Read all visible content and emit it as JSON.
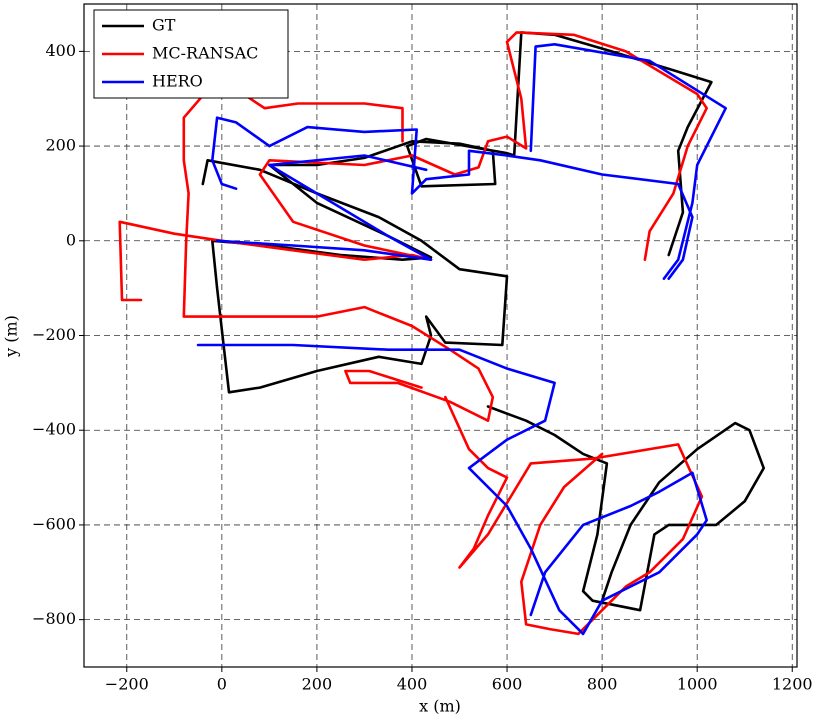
{
  "chart_data": {
    "type": "line",
    "xlabel": "x (m)",
    "ylabel": "y (m)",
    "xlim": [
      -290,
      1210
    ],
    "ylim": [
      -900,
      500
    ],
    "xticks": [
      {
        "value": -200,
        "label": "−200"
      },
      0,
      200,
      400,
      600,
      800,
      1000,
      1200
    ],
    "yticks": [
      {
        "value": -800,
        "label": "−800"
      },
      {
        "value": -600,
        "label": "−600"
      },
      {
        "value": -400,
        "label": "−400"
      },
      {
        "value": -200,
        "label": "−200"
      },
      0,
      200,
      400
    ],
    "grid": true,
    "legend": "upper left",
    "series": [
      {
        "name": "GT",
        "color": "#000000",
        "x": [
          -40,
          -30,
          80,
          200,
          330,
          420,
          500,
          600,
          590,
          470,
          430,
          440,
          420,
          330,
          200,
          80,
          15,
          -10,
          -20,
          100,
          250,
          380,
          440,
          350,
          200,
          100,
          200,
          300,
          400,
          500,
          570,
          575,
          420,
          390,
          430,
          600,
          615,
          630,
          700,
          820,
          950,
          1030,
          980,
          960,
          970,
          940,
          null,
          560,
          640,
          700,
          760,
          810,
          790,
          760,
          780,
          880,
          910,
          940,
          1040,
          1100,
          1140,
          1110,
          1080,
          1000,
          920,
          860,
          820,
          800
        ],
        "values": [
          120,
          170,
          150,
          100,
          50,
          0,
          -60,
          -75,
          -220,
          -215,
          -160,
          -200,
          -260,
          -245,
          -275,
          -310,
          -320,
          -100,
          0,
          -10,
          -30,
          -40,
          -35,
          10,
          80,
          160,
          160,
          175,
          210,
          205,
          190,
          120,
          115,
          200,
          215,
          185,
          180,
          440,
          435,
          400,
          360,
          335,
          240,
          190,
          60,
          -30,
          null,
          -350,
          -380,
          -410,
          -450,
          -470,
          -620,
          -740,
          -760,
          -780,
          -620,
          -600,
          -600,
          -550,
          -480,
          -400,
          -385,
          -440,
          -510,
          -600,
          -700,
          -760
        ]
      },
      {
        "name": "MC-RANSAC",
        "color": "#ff0000",
        "x": [
          -170,
          -210,
          -215,
          -100,
          0,
          150,
          300,
          400,
          440,
          300,
          150,
          80,
          100,
          300,
          400,
          490,
          540,
          560,
          600,
          640,
          630,
          600,
          620,
          740,
          850,
          1000,
          1020,
          980,
          950,
          900,
          890,
          null,
          380,
          380,
          300,
          160,
          90,
          30,
          -20,
          -80,
          -80,
          -70,
          -75,
          -80,
          200,
          300,
          400,
          480,
          540,
          570,
          560,
          480,
          370,
          270,
          260,
          310,
          420,
          null,
          470,
          520,
          560,
          600,
          560,
          530,
          500,
          560,
          650,
          780,
          960,
          1010,
          970,
          900,
          850,
          800,
          750,
          690,
          640,
          630,
          670,
          720,
          800
        ],
        "values": [
          -125,
          -125,
          40,
          15,
          0,
          -20,
          -40,
          -30,
          -40,
          -10,
          40,
          140,
          170,
          160,
          180,
          140,
          155,
          210,
          220,
          195,
          300,
          420,
          440,
          435,
          400,
          310,
          280,
          200,
          100,
          20,
          -40,
          null,
          210,
          280,
          290,
          290,
          280,
          320,
          330,
          260,
          170,
          100,
          0,
          -160,
          -160,
          -140,
          -180,
          -230,
          -270,
          -330,
          -380,
          -340,
          -300,
          -300,
          -275,
          -275,
          -310,
          null,
          -330,
          -440,
          -480,
          -500,
          -580,
          -650,
          -690,
          -620,
          -470,
          -460,
          -430,
          -540,
          -630,
          -700,
          -730,
          -780,
          -830,
          -820,
          -810,
          -720,
          -600,
          -520,
          -450
        ]
      },
      {
        "name": "HERO",
        "color": "#0000ff",
        "x": [
          30,
          0,
          -20,
          -10,
          30,
          100,
          180,
          300,
          410,
          400,
          430,
          520,
          520,
          600,
          670,
          800,
          960,
          990,
          970,
          940,
          null,
          650,
          660,
          700,
          900,
          1060,
          1000,
          990,
          960,
          930,
          null,
          -10,
          150,
          300,
          440,
          350,
          100,
          300,
          430,
          null,
          -50,
          150,
          350,
          500,
          600,
          700,
          680,
          600,
          520,
          600,
          650,
          710,
          760,
          800,
          920,
          1000,
          1020,
          990,
          920,
          860,
          760,
          680,
          650
        ],
        "values": [
          110,
          120,
          170,
          260,
          250,
          200,
          240,
          230,
          235,
          100,
          130,
          140,
          190,
          180,
          170,
          140,
          120,
          50,
          -40,
          -80,
          null,
          190,
          410,
          415,
          380,
          280,
          160,
          80,
          -40,
          -80,
          null,
          0,
          -10,
          -20,
          -40,
          10,
          160,
          180,
          150,
          null,
          -220,
          -220,
          -230,
          -230,
          -270,
          -300,
          -380,
          -420,
          -480,
          -560,
          -650,
          -780,
          -830,
          -760,
          -700,
          -620,
          -590,
          -490,
          -530,
          -560,
          -600,
          -700,
          -790
        ]
      }
    ]
  }
}
